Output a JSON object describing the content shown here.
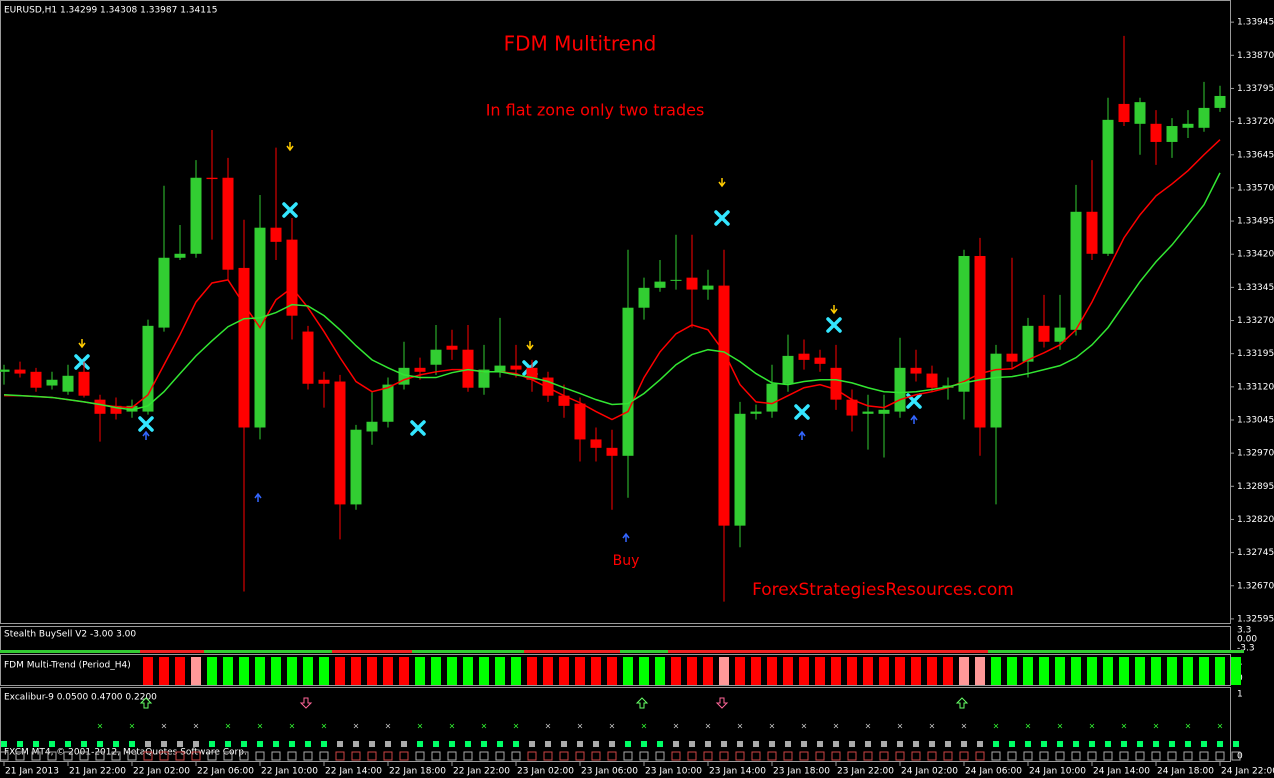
{
  "chart_data": {
    "type": "candlestick",
    "symbol_info": "EURUSD,H1 1.34299 1.34308 1.33987 1.34115",
    "title": "FDM Multitrend",
    "annotations": [
      "In flat zone only two trades",
      "Buy",
      "ForexStrategiesResources.com"
    ],
    "footer": "FXCM MT4, © 2001-2012, MetaQuotes Software Corp.",
    "categories": [
      "21 Jan 2013",
      null,
      null,
      null,
      "21 Jan 22:00",
      null,
      null,
      null,
      "22 Jan 02:00",
      null,
      null,
      null,
      "22 Jan 06:00",
      null,
      null,
      null,
      "22 Jan 10:00",
      null,
      null,
      null,
      "22 Jan 14:00",
      null,
      null,
      null,
      "22 Jan 18:00",
      null,
      null,
      null,
      "22 Jan 22:00",
      null,
      null,
      null,
      "23 Jan 02:00",
      null,
      null,
      null,
      "23 Jan 06:00",
      null,
      null,
      null,
      "23 Jan 10:00",
      null,
      null,
      null,
      "23 Jan 14:00",
      null,
      null,
      null,
      "23 Jan 18:00",
      null,
      null,
      null,
      "23 Jan 22:00",
      null,
      null,
      null,
      "24 Jan 02:00",
      null,
      null,
      null,
      "24 Jan 06:00",
      null,
      null,
      null,
      "24 Jan 10:00",
      null,
      null,
      null,
      "24 Jan 14:00",
      null,
      null,
      null,
      "24 Jan 18:00",
      null,
      null,
      null,
      "24 Jan 22:00"
    ],
    "open": [
      1.33154,
      1.33159,
      1.33154,
      1.33123,
      1.33109,
      1.33154,
      1.33091,
      1.33077,
      1.33064,
      1.33064,
      1.33254,
      1.33412,
      1.33421,
      1.33593,
      1.33593,
      1.33389,
      1.33028,
      1.3348,
      1.33453,
      1.33245,
      1.33136,
      1.33132,
      1.32854,
      1.33019,
      1.33041,
      1.33125,
      1.33163,
      1.3317,
      1.33213,
      1.33204,
      1.33118,
      1.33154,
      1.33168,
      1.33163,
      1.33141,
      1.331,
      1.33082,
      1.33001,
      1.32982,
      1.32964,
      1.33299,
      1.33344,
      1.3336,
      1.33367,
      1.3334,
      1.33349,
      1.32806,
      1.33059,
      1.33064,
      1.33127,
      1.33195,
      1.33186,
      1.33163,
      1.33091,
      1.33059,
      1.33059,
      1.33064,
      1.33163,
      1.3315,
      1.33118,
      1.33109,
      1.33416,
      1.33028,
      1.33195,
      1.33177,
      1.33258,
      1.33222,
      1.33249,
      1.33516,
      1.33421,
      1.3376,
      1.33715,
      1.33715,
      1.33674,
      1.33706,
      1.33706,
      1.33751
    ],
    "high": [
      1.3317,
      1.33177,
      1.33163,
      1.33154,
      1.3317,
      1.33177,
      1.33102,
      1.33096,
      1.33091,
      1.33272,
      1.33575,
      1.33486,
      1.33633,
      1.33701,
      1.33638,
      1.33498,
      1.33554,
      1.33661,
      1.33502,
      1.33258,
      1.33154,
      1.33147,
      1.33034,
      1.33109,
      1.33141,
      1.33222,
      1.33186,
      1.3326,
      1.33249,
      1.3326,
      1.33215,
      1.33276,
      1.33215,
      1.33181,
      1.33154,
      1.33125,
      1.33096,
      1.33028,
      1.33023,
      1.3343,
      1.33367,
      1.33407,
      1.33464,
      1.33464,
      1.33385,
      1.3343,
      1.33086,
      1.3308,
      1.3317,
      1.33238,
      1.33227,
      1.33204,
      1.33215,
      1.33114,
      1.33102,
      1.33102,
      1.33231,
      1.33204,
      1.33168,
      1.33141,
      1.3343,
      1.33457,
      1.33215,
      1.33412,
      1.33276,
      1.33328,
      1.33328,
      1.33577,
      1.33633,
      1.33774,
      1.33914,
      1.33774,
      1.33746,
      1.33728,
      1.33746,
      1.3381,
      1.33801
    ],
    "low": [
      1.33125,
      1.33141,
      1.33109,
      1.33114,
      1.33102,
      1.33096,
      1.32996,
      1.33046,
      1.3305,
      1.33057,
      1.33245,
      1.33407,
      1.33412,
      1.33453,
      1.33362,
      1.32657,
      1.33001,
      1.33407,
      1.33227,
      1.33114,
      1.33073,
      1.32775,
      1.32842,
      1.32989,
      1.33028,
      1.33114,
      1.33136,
      1.33147,
      1.33181,
      1.33109,
      1.33102,
      1.33141,
      1.33141,
      1.33109,
      1.33086,
      1.3305,
      1.32951,
      1.32951,
      1.32842,
      1.32869,
      1.33272,
      1.33335,
      1.3334,
      1.33254,
      1.33317,
      1.32634,
      1.32757,
      1.33046,
      1.3305,
      1.33109,
      1.33159,
      1.33154,
      1.33068,
      1.33019,
      1.32978,
      1.3296,
      1.3305,
      1.33132,
      1.33109,
      1.33091,
      1.33046,
      1.32964,
      1.32854,
      1.33159,
      1.33141,
      1.33209,
      1.33204,
      1.33236,
      1.33407,
      1.33416,
      1.3371,
      1.33645,
      1.33622,
      1.33638,
      1.33683,
      1.33697,
      1.33742
    ],
    "close": [
      1.33159,
      1.3315,
      1.33118,
      1.33136,
      1.33145,
      1.331,
      1.33059,
      1.33059,
      1.33077,
      1.33258,
      1.33412,
      1.33421,
      1.33593,
      1.3359,
      1.33385,
      1.33028,
      1.3348,
      1.33448,
      1.33281,
      1.33127,
      1.33127,
      1.32854,
      1.33023,
      1.33041,
      1.33125,
      1.33163,
      1.33154,
      1.33204,
      1.33204,
      1.33118,
      1.33159,
      1.33168,
      1.33159,
      1.33136,
      1.331,
      1.33077,
      1.33001,
      1.32982,
      1.32964,
      1.33299,
      1.33344,
      1.33358,
      1.33362,
      1.3334,
      1.33349,
      1.32806,
      1.33059,
      1.33064,
      1.33127,
      1.3319,
      1.33181,
      1.33172,
      1.33091,
      1.33055,
      1.33064,
      1.33068,
      1.33163,
      1.3315,
      1.33118,
      1.33123,
      1.33416,
      1.33028,
      1.33195,
      1.33177,
      1.33258,
      1.33222,
      1.33254,
      1.33516,
      1.33421,
      1.33724,
      1.33719,
      1.33764,
      1.33674,
      1.3371,
      1.33715,
      1.33751,
      1.33778
    ],
    "bull_color": "#32cd32",
    "bear_color": "#ff0000",
    "series": [
      {
        "color": "#ff0000",
        "values": [
          1.331,
          1.331,
          1.33098,
          1.33096,
          1.33091,
          1.33086,
          1.3308,
          1.33075,
          1.33073,
          1.33102,
          1.3317,
          1.33238,
          1.33312,
          1.33355,
          1.33362,
          1.33306,
          1.33254,
          1.33317,
          1.33344,
          1.33299,
          1.33245,
          1.33186,
          1.33132,
          1.33109,
          1.33118,
          1.33136,
          1.33147,
          1.33154,
          1.33159,
          1.33159,
          1.33154,
          1.33154,
          1.3315,
          1.33136,
          1.33118,
          1.331,
          1.33084,
          1.33064,
          1.33046,
          1.33064,
          1.33141,
          1.33199,
          1.3324,
          1.3326,
          1.33249,
          1.33199,
          1.33125,
          1.33086,
          1.33082,
          1.331,
          1.33118,
          1.33125,
          1.33114,
          1.33091,
          1.33077,
          1.33073,
          1.33091,
          1.33102,
          1.33109,
          1.33118,
          1.33132,
          1.3315,
          1.33159,
          1.33161,
          1.33181,
          1.33197,
          1.33215,
          1.33249,
          1.33312,
          1.33385,
          1.33457,
          1.33509,
          1.33552,
          1.33579,
          1.33609,
          1.33645,
          1.33679
        ]
      },
      {
        "color": "#32e632",
        "values": [
          1.33102,
          1.331,
          1.33098,
          1.33096,
          1.33091,
          1.33086,
          1.3308,
          1.33073,
          1.33068,
          1.33077,
          1.33109,
          1.3315,
          1.3319,
          1.33224,
          1.33256,
          1.33274,
          1.33276,
          1.33288,
          1.33306,
          1.33303,
          1.33281,
          1.33249,
          1.33213,
          1.33181,
          1.33163,
          1.33147,
          1.33141,
          1.33141,
          1.33152,
          1.33159,
          1.33154,
          1.33154,
          1.33147,
          1.33141,
          1.33132,
          1.33118,
          1.33105,
          1.33091,
          1.3308,
          1.33082,
          1.33105,
          1.33136,
          1.3317,
          1.33193,
          1.33204,
          1.33199,
          1.33177,
          1.3315,
          1.33129,
          1.33125,
          1.33132,
          1.33136,
          1.33136,
          1.33129,
          1.33118,
          1.33109,
          1.33107,
          1.33109,
          1.33114,
          1.3312,
          1.33129,
          1.33136,
          1.33141,
          1.33143,
          1.3315,
          1.33159,
          1.33168,
          1.33186,
          1.33215,
          1.33254,
          1.33306,
          1.33358,
          1.33403,
          1.33441,
          1.33486,
          1.33532,
          1.33604
        ]
      }
    ],
    "ylim": [
      1.32588,
      1.33977
    ],
    "yticks": [
      1.33945,
      {
        "value": 1.3387,
        "label": "1.33870"
      },
      1.33795,
      {
        "value": 1.3372,
        "label": "1.33720"
      },
      1.33645,
      {
        "value": 1.3357,
        "label": "1.33570"
      },
      1.33495,
      {
        "value": 1.3342,
        "label": "1.33420"
      },
      1.33345,
      {
        "value": 1.3327,
        "label": "1.33270"
      },
      1.33195,
      {
        "value": 1.3312,
        "label": "1.33120"
      },
      1.33045,
      {
        "value": 1.3297,
        "label": "1.32970"
      },
      1.32895,
      {
        "value": 1.3282,
        "label": "1.32820"
      },
      1.32745,
      {
        "value": 1.3267,
        "label": "1.32670"
      },
      1.32595
    ],
    "indicators": [
      {
        "title": "Stealth BuySell V2 -3.00 3.00",
        "levels": [
          3.3,
          {
            "value": 0,
            "label": "0.00"
          },
          -3.3
        ]
      },
      {
        "title": "FDM Multi-Trend (Period_H4)",
        "levels": [
          1,
          0
        ]
      },
      {
        "title": "Excalibur-9 0.0500 0.4700 0.2200",
        "levels": [
          1,
          0
        ]
      }
    ]
  }
}
